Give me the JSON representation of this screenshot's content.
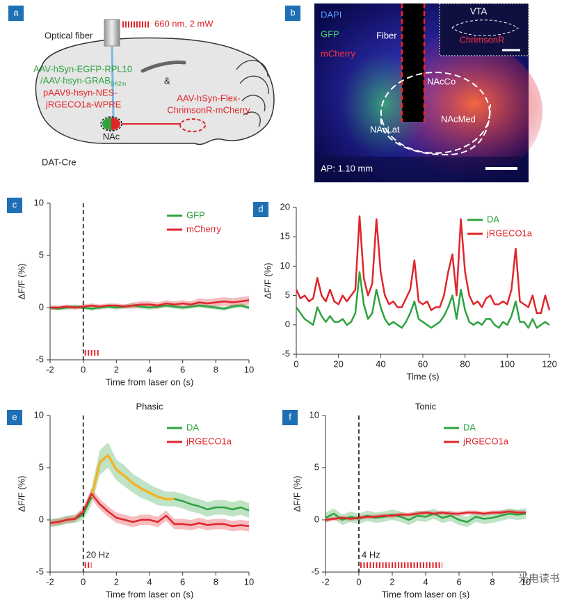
{
  "panels": {
    "a": {
      "letter": "a",
      "fiber": "Optical fiber",
      "laser": "660 nm, 2 mW",
      "virus1": "AAV-hSyn-EGFP-RPL10",
      "virus2": "/AAV-hsyn-GRAB",
      "virus2_sub": "DA2m",
      "amp": "&",
      "virus3": "pAAV9-hsyn-NES-",
      "virus4": "jRGECO1a-WPRE",
      "virus5": "AAV-hSyn-Flex-",
      "virus6": "ChrimsonR-mCherry",
      "region": "NAc",
      "mouse": "DAT-Cre"
    },
    "b": {
      "letter": "b",
      "dapi": "DAPI",
      "gfp": "GFP",
      "mcherry": "mCherry",
      "fiber": "Fiber",
      "vta": "VTA",
      "chrimson": "ChrimsonR",
      "core": "NAcCo",
      "lat": "NAcLat",
      "med": "NAcMed",
      "ap": "AP: 1.10 mm"
    }
  },
  "chart_data": [
    {
      "type": "line",
      "panel": "c",
      "xlabel": "Time from laser on (s)",
      "ylabel": "ΔF/F (%)",
      "x": [
        -2,
        -1.5,
        -1,
        -0.5,
        0,
        0.5,
        1,
        1.5,
        2,
        2.5,
        3,
        3.5,
        4,
        4.5,
        5,
        5.5,
        6,
        6.5,
        7,
        7.5,
        8,
        8.5,
        9,
        9.5,
        10
      ],
      "series": [
        {
          "name": "GFP",
          "color": "#2ca33f",
          "values": [
            0,
            -0.1,
            0,
            0.1,
            0,
            -0.1,
            0,
            0.1,
            0,
            0.1,
            0.2,
            0.1,
            0,
            0.1,
            0.2,
            0.1,
            0,
            0.1,
            0.2,
            0.1,
            0,
            -0.1,
            0.1,
            0.2,
            0
          ],
          "error": [
            0.2,
            0.2,
            0.2,
            0.2,
            0.2,
            0.2,
            0.2,
            0.2,
            0.2,
            0.2,
            0.2,
            0.2,
            0.2,
            0.2,
            0.2,
            0.2,
            0.2,
            0.2,
            0.2,
            0.2,
            0.2,
            0.2,
            0.2,
            0.2,
            0.2
          ]
        },
        {
          "name": "mCherry",
          "color": "#e0262b",
          "values": [
            0,
            0,
            0.1,
            0,
            0.1,
            0.2,
            0.1,
            0.2,
            0.2,
            0.1,
            0.2,
            0.3,
            0.3,
            0.2,
            0.4,
            0.3,
            0.4,
            0.3,
            0.5,
            0.4,
            0.5,
            0.6,
            0.5,
            0.6,
            0.7
          ],
          "error": [
            0.2,
            0.2,
            0.2,
            0.2,
            0.2,
            0.2,
            0.2,
            0.2,
            0.2,
            0.2,
            0.3,
            0.3,
            0.3,
            0.3,
            0.3,
            0.3,
            0.3,
            0.3,
            0.4,
            0.4,
            0.4,
            0.4,
            0.4,
            0.4,
            0.4
          ]
        }
      ],
      "stimulation": {
        "xlim": [
          0,
          1
        ],
        "color": "#e0262b"
      },
      "xlim": [
        -2,
        10
      ],
      "ylim": [
        -5,
        10
      ],
      "xticks": [
        -2,
        0,
        2,
        4,
        6,
        8,
        10
      ],
      "yticks": [
        -5,
        0,
        5,
        10
      ],
      "legend": "upper right",
      "grid": false
    },
    {
      "type": "line",
      "panel": "d",
      "xlabel": "Time (s)",
      "ylabel": "ΔF/F (%)",
      "x": [
        0,
        2,
        4,
        6,
        8,
        10,
        12,
        14,
        16,
        18,
        20,
        22,
        24,
        26,
        28,
        30,
        32,
        34,
        36,
        38,
        40,
        42,
        44,
        46,
        48,
        50,
        52,
        54,
        56,
        58,
        60,
        62,
        64,
        66,
        68,
        70,
        72,
        74,
        76,
        78,
        80,
        82,
        84,
        86,
        88,
        90,
        92,
        94,
        96,
        98,
        100,
        102,
        104,
        106,
        108,
        110,
        112,
        114,
        116,
        118,
        120
      ],
      "series": [
        {
          "name": "DA",
          "color": "#2ca33f",
          "values": [
            3,
            2,
            1,
            0.5,
            0,
            3,
            1.5,
            0.5,
            1.5,
            0.5,
            0.5,
            1,
            0,
            0.5,
            2,
            9,
            3.5,
            1,
            2,
            6,
            3,
            1,
            0,
            0.5,
            0,
            -0.5,
            0.5,
            2,
            4,
            1,
            0.5,
            0,
            -0.5,
            0,
            0.5,
            1.5,
            3,
            5,
            1,
            6,
            2.5,
            0.5,
            0,
            0.5,
            0,
            1,
            1,
            0,
            -0.5,
            0.5,
            0,
            1.5,
            4,
            0.5,
            0.5,
            -0.5,
            1,
            -0.5,
            0,
            0.5,
            0
          ]
        },
        {
          "name": "jRGECO1a",
          "color": "#e0262b",
          "values": [
            6,
            4.5,
            5,
            4,
            4.5,
            8,
            5,
            4,
            6,
            4,
            3.5,
            5,
            4,
            5,
            6,
            18.5,
            8,
            5,
            7,
            18,
            9,
            5,
            3.5,
            4,
            3,
            3,
            4.5,
            6,
            11,
            4,
            3.5,
            4,
            2.5,
            3,
            3,
            5,
            9,
            12,
            5,
            18,
            9,
            5,
            3.5,
            4,
            3,
            4.5,
            5,
            3.5,
            3.5,
            4,
            3.5,
            6,
            13,
            4,
            3.5,
            3,
            5,
            2,
            2,
            5,
            2.5
          ]
        }
      ],
      "xlim": [
        0,
        120
      ],
      "ylim": [
        -5,
        20
      ],
      "xticks": [
        0,
        20,
        40,
        60,
        80,
        100,
        120
      ],
      "yticks": [
        -5,
        0,
        5,
        10,
        15,
        20
      ],
      "legend": "upper right",
      "grid": false
    },
    {
      "type": "line",
      "panel": "e",
      "title": "Phasic",
      "xlabel": "Time from laser on (s)",
      "ylabel": "ΔF/F (%)",
      "x": [
        -2,
        -1.5,
        -1,
        -0.5,
        0,
        0.5,
        1,
        1.5,
        2,
        2.5,
        3,
        3.5,
        4,
        4.5,
        5,
        5.5,
        6,
        6.5,
        7,
        7.5,
        8,
        8.5,
        9,
        9.5,
        10
      ],
      "series": [
        {
          "name": "DA",
          "color": "#2ca33f",
          "values": [
            -0.3,
            -0.2,
            0,
            0.1,
            0.5,
            2.2,
            5.5,
            6.2,
            4.8,
            4.2,
            3.5,
            3,
            2.6,
            2.2,
            2,
            2,
            1.8,
            1.5,
            1.3,
            1,
            1.2,
            1.2,
            1,
            1.2,
            0.9
          ],
          "error": [
            0.4,
            0.4,
            0.4,
            0.4,
            0.5,
            0.8,
            1.2,
            1.2,
            1,
            1,
            0.9,
            0.9,
            0.8,
            0.8,
            0.7,
            0.7,
            0.7,
            0.7,
            0.7,
            0.7,
            0.7,
            0.7,
            0.7,
            0.7,
            0.7
          ],
          "highlight": {
            "xlim": [
              0.5,
              5.5
            ],
            "color": "#f0b429"
          }
        },
        {
          "name": "jRGECO1a",
          "color": "#e0262b",
          "values": [
            -0.3,
            -0.2,
            0,
            0.1,
            0.8,
            2.5,
            1.5,
            0.8,
            0.2,
            0,
            -0.2,
            0,
            0,
            -0.2,
            0.4,
            -0.4,
            -0.4,
            -0.5,
            -0.3,
            -0.5,
            -0.4,
            -0.4,
            -0.6,
            -0.5,
            -0.6
          ],
          "error": [
            0.3,
            0.3,
            0.3,
            0.3,
            0.4,
            0.5,
            0.5,
            0.5,
            0.5,
            0.5,
            0.5,
            0.5,
            0.5,
            0.5,
            0.5,
            0.5,
            0.5,
            0.5,
            0.5,
            0.5,
            0.5,
            0.5,
            0.5,
            0.5,
            0.5
          ]
        }
      ],
      "stimulation": {
        "xlim": [
          0,
          0.5
        ],
        "label": "20 Hz",
        "color": "#e0262b"
      },
      "xlim": [
        -2,
        10
      ],
      "ylim": [
        -5,
        10
      ],
      "xticks": [
        -2,
        0,
        2,
        4,
        6,
        8,
        10
      ],
      "yticks": [
        -5,
        0,
        5,
        10
      ],
      "legend": "upper right",
      "grid": false
    },
    {
      "type": "line",
      "panel": "f",
      "title": "Tonic",
      "xlabel": "Time from laser on (s)",
      "ylabel": "ΔF/F (%)",
      "x": [
        -2,
        -1.5,
        -1,
        -0.5,
        0,
        0.5,
        1,
        1.5,
        2,
        2.5,
        3,
        3.5,
        4,
        4.5,
        5,
        5.5,
        6,
        6.5,
        7,
        7.5,
        8,
        8.5,
        9,
        9.5,
        10
      ],
      "series": [
        {
          "name": "DA",
          "color": "#2ca33f",
          "values": [
            0.2,
            0.6,
            0,
            0.3,
            0.1,
            0.4,
            0.2,
            0.3,
            0.5,
            0.3,
            0,
            0.4,
            0.3,
            0.6,
            0.2,
            0.4,
            0,
            -0.2,
            0.3,
            0.1,
            0.2,
            0.4,
            0.6,
            0.5,
            0.6
          ],
          "error": [
            0.5,
            0.5,
            0.5,
            0.5,
            0.5,
            0.5,
            0.5,
            0.5,
            0.5,
            0.5,
            0.5,
            0.5,
            0.5,
            0.5,
            0.5,
            0.5,
            0.5,
            0.5,
            0.5,
            0.5,
            0.5,
            0.5,
            0.5,
            0.5,
            0.5
          ]
        },
        {
          "name": "jRGECO1a",
          "color": "#e0262b",
          "values": [
            0,
            0.1,
            0.2,
            0.1,
            0.2,
            0.3,
            0.3,
            0.4,
            0.4,
            0.5,
            0.5,
            0.6,
            0.7,
            0.6,
            0.7,
            0.6,
            0.6,
            0.7,
            0.7,
            0.6,
            0.7,
            0.7,
            0.8,
            0.7,
            0.7
          ],
          "error": [
            0.2,
            0.2,
            0.2,
            0.2,
            0.2,
            0.2,
            0.2,
            0.2,
            0.2,
            0.2,
            0.2,
            0.2,
            0.2,
            0.2,
            0.2,
            0.2,
            0.2,
            0.2,
            0.2,
            0.2,
            0.2,
            0.2,
            0.2,
            0.2,
            0.2
          ]
        }
      ],
      "stimulation": {
        "xlim": [
          0,
          5
        ],
        "label": "4 Hz",
        "color": "#e0262b"
      },
      "xlim": [
        -2,
        10
      ],
      "ylim": [
        -5,
        10
      ],
      "xticks": [
        -2,
        0,
        2,
        4,
        6,
        8,
        10
      ],
      "yticks": [
        -5,
        0,
        5,
        10
      ],
      "legend": "upper right",
      "grid": false
    }
  ],
  "watermark": "光电读书"
}
